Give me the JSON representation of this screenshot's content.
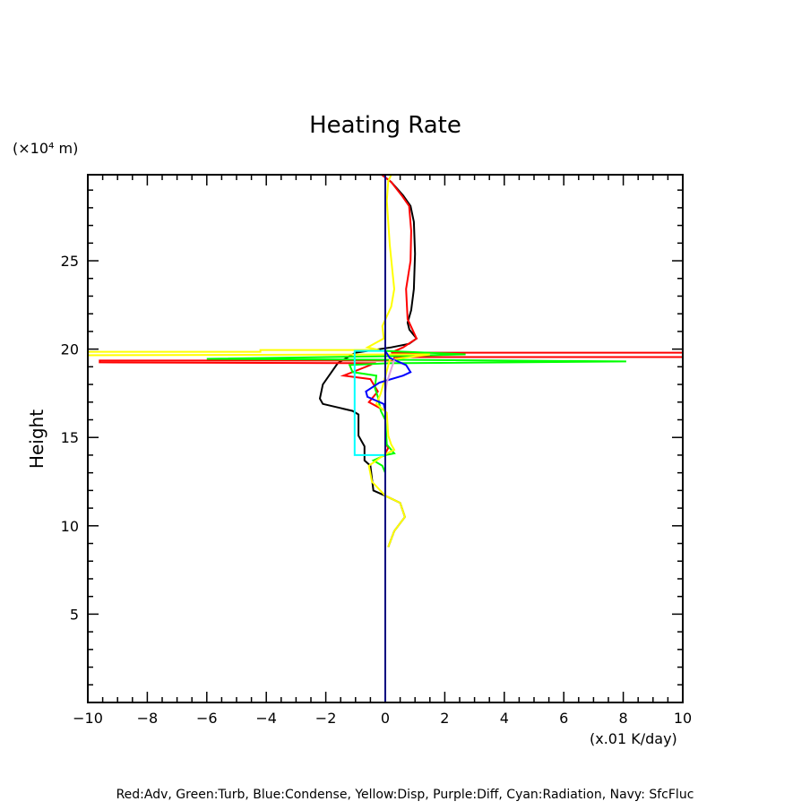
{
  "chart_data": {
    "type": "line",
    "title": "Heating Rate",
    "ylabel": "Height",
    "yunit": "(×10⁴ m)",
    "xunit": "(x.01 K/day)",
    "legend_text": "Red:Adv, Green:Turb, Blue:Condense, Yellow:Disp, Purple:Diff, Cyan:Radiation, Navy: SfcFluc",
    "xlim": [
      -10,
      10
    ],
    "ylim": [
      0,
      29.87
    ],
    "xticks": [
      -10,
      -8,
      -6,
      -4,
      -2,
      0,
      2,
      4,
      6,
      8,
      10
    ],
    "xtick_labels": [
      "−10",
      "−8",
      "−6",
      "−4",
      "−2",
      "0",
      "2",
      "4",
      "6",
      "8",
      "10"
    ],
    "yticks": [
      5,
      10,
      15,
      20,
      25
    ],
    "ytick_labels": [
      "5",
      "10",
      "15",
      "20",
      "25"
    ],
    "grid": false,
    "series": [
      {
        "color": "#000000",
        "points": [
          [
            -0.12,
            29.87
          ],
          [
            0.2,
            29.46
          ],
          [
            0.6,
            28.7
          ],
          [
            0.85,
            28.1
          ],
          [
            0.96,
            27.2
          ],
          [
            1.0,
            25.4
          ],
          [
            0.96,
            23.4
          ],
          [
            0.87,
            22.2
          ],
          [
            0.75,
            21.5
          ],
          [
            0.81,
            21.1
          ],
          [
            1.05,
            20.6
          ],
          [
            0.8,
            20.3
          ],
          [
            0.2,
            20.1
          ],
          [
            -1.0,
            19.8
          ],
          [
            -1.6,
            19.2
          ],
          [
            -2.1,
            18.0
          ],
          [
            -2.2,
            17.2
          ],
          [
            -2.1,
            16.9
          ],
          [
            -1.1,
            16.5
          ],
          [
            -0.9,
            16.3
          ],
          [
            -0.9,
            15.1
          ],
          [
            -0.7,
            14.5
          ],
          [
            -0.7,
            13.7
          ],
          [
            -0.5,
            13.4
          ],
          [
            -0.4,
            12.0
          ],
          [
            0,
            11.7
          ],
          [
            0.5,
            11.3
          ],
          [
            0.66,
            10.5
          ],
          [
            0.3,
            9.7
          ],
          [
            0.1,
            8.8
          ]
        ]
      },
      {
        "color": "#ff0000",
        "points": [
          [
            -0.12,
            29.87
          ],
          [
            0.2,
            29.46
          ],
          [
            0.55,
            28.7
          ],
          [
            0.8,
            28.1
          ],
          [
            0.87,
            26.7
          ],
          [
            0.85,
            25.0
          ],
          [
            0.7,
            23.4
          ],
          [
            0.75,
            21.7
          ],
          [
            1.05,
            20.6
          ],
          [
            0.6,
            20.1
          ],
          [
            0.2,
            19.8
          ],
          [
            10,
            19.8
          ],
          [
            10,
            19.55
          ],
          [
            0.3,
            19.55
          ],
          [
            0.3,
            19.35
          ],
          [
            -9.6,
            19.35
          ],
          [
            -9.6,
            19.25
          ],
          [
            -0.4,
            19.2
          ],
          [
            -0.5,
            19.1
          ],
          [
            -1.4,
            18.5
          ],
          [
            -0.5,
            18.3
          ],
          [
            -0.25,
            17.6
          ],
          [
            -0.55,
            17.0
          ],
          [
            0,
            16.5
          ],
          [
            0,
            14.7
          ],
          [
            0.1,
            14.4
          ],
          [
            0,
            14.1
          ],
          [
            0,
            9.8
          ]
        ]
      },
      {
        "color": "#00ff00",
        "points": [
          [
            0,
            19.9
          ],
          [
            2.7,
            19.7
          ],
          [
            0.2,
            19.6
          ],
          [
            -6,
            19.45
          ],
          [
            0.2,
            19.4
          ],
          [
            8.1,
            19.3
          ],
          [
            0.1,
            19.2
          ],
          [
            -1.2,
            19.1
          ],
          [
            -1.1,
            18.7
          ],
          [
            -0.3,
            18.5
          ],
          [
            -0.35,
            17.8
          ],
          [
            -0.25,
            17.3
          ],
          [
            -0.15,
            16.5
          ],
          [
            0,
            16.0
          ],
          [
            0.05,
            14.6
          ],
          [
            0.3,
            14.1
          ],
          [
            0,
            14.0
          ],
          [
            -0.4,
            13.7
          ],
          [
            -0.1,
            13.4
          ],
          [
            0,
            13.0
          ]
        ]
      },
      {
        "color": "#ffff00",
        "points": [
          [
            0.2,
            29.87
          ],
          [
            0.1,
            29.5
          ],
          [
            0.05,
            28.4
          ],
          [
            0.15,
            25.9
          ],
          [
            0.3,
            23.4
          ],
          [
            0.2,
            22.4
          ],
          [
            -0.1,
            21.3
          ],
          [
            -0.05,
            20.6
          ],
          [
            -0.6,
            20.1
          ],
          [
            -0.2,
            19.95
          ],
          [
            -4.2,
            19.95
          ],
          [
            -4.2,
            19.85
          ],
          [
            -10,
            19.85
          ],
          [
            -10,
            19.65
          ],
          [
            1.5,
            19.7
          ],
          [
            0.15,
            19.4
          ],
          [
            -0.15,
            17.5
          ],
          [
            -0.3,
            16.9
          ],
          [
            0.05,
            16.4
          ],
          [
            0.1,
            15.1
          ],
          [
            0.2,
            14.6
          ],
          [
            0.3,
            14.3
          ],
          [
            -0.05,
            14.0
          ],
          [
            -0.55,
            13.4
          ],
          [
            -0.45,
            12.5
          ],
          [
            0,
            11.7
          ],
          [
            0.5,
            11.3
          ],
          [
            0.66,
            10.5
          ],
          [
            0.3,
            9.7
          ],
          [
            0.1,
            8.8
          ]
        ]
      },
      {
        "color": "#0000ff",
        "points": [
          [
            0,
            19.9
          ],
          [
            0.15,
            19.5
          ],
          [
            0.7,
            19.1
          ],
          [
            0.85,
            18.7
          ],
          [
            0.6,
            18.5
          ],
          [
            -0.2,
            18.1
          ],
          [
            -0.65,
            17.6
          ],
          [
            -0.6,
            17.3
          ],
          [
            -0.05,
            16.9
          ],
          [
            0,
            16.5
          ]
        ]
      },
      {
        "color": "#dda0dd",
        "points": [
          [
            0.3,
            19.4
          ],
          [
            0.05,
            18.1
          ],
          [
            0,
            17.5
          ]
        ]
      },
      {
        "color": "#00ffff",
        "points": [
          [
            0,
            19.9
          ],
          [
            -1.03,
            19.9
          ],
          [
            -1.03,
            14.0
          ],
          [
            0,
            14.0
          ]
        ]
      },
      {
        "color": "#000080",
        "points": [
          [
            0,
            0
          ],
          [
            0,
            29.87
          ]
        ]
      }
    ]
  }
}
